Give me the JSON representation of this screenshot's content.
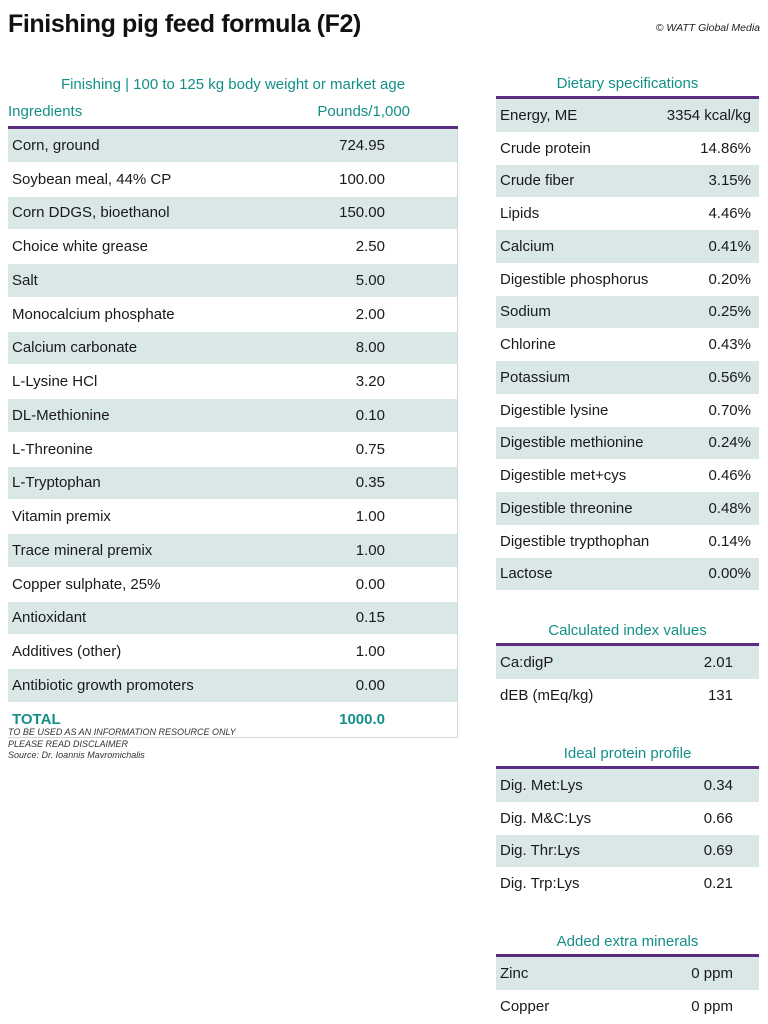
{
  "title": "Finishing pig feed formula (F2)",
  "credit": "© WATT Global Media",
  "left": {
    "caption": "Finishing | 100 to 125 kg body weight or market age",
    "col_ingredients": "Ingredients",
    "col_amount": "Pounds/1,000",
    "rows": [
      {
        "name": "Corn, ground",
        "value": "724.95"
      },
      {
        "name": "Soybean meal, 44% CP",
        "value": "100.00"
      },
      {
        "name": "Corn DDGS, bioethanol",
        "value": "150.00"
      },
      {
        "name": "Choice white grease",
        "value": "2.50"
      },
      {
        "name": "Salt",
        "value": "5.00"
      },
      {
        "name": "Monocalcium phosphate",
        "value": "2.00"
      },
      {
        "name": "Calcium carbonate",
        "value": "8.00"
      },
      {
        "name": "L-Lysine HCl",
        "value": "3.20"
      },
      {
        "name": "DL-Methionine",
        "value": "0.10"
      },
      {
        "name": "L-Threonine",
        "value": "0.75"
      },
      {
        "name": "L-Tryptophan",
        "value": "0.35"
      },
      {
        "name": "Vitamin premix",
        "value": "1.00"
      },
      {
        "name": "Trace mineral premix",
        "value": "1.00"
      },
      {
        "name": "Copper sulphate, 25%",
        "value": "0.00"
      },
      {
        "name": "Antioxidant",
        "value": "0.15"
      },
      {
        "name": "Additives (other)",
        "value": "1.00"
      },
      {
        "name": "Antibiotic growth promoters",
        "value": "0.00"
      }
    ],
    "total_label": "TOTAL",
    "total_value": "1000.0"
  },
  "disclaimer": {
    "line1": "TO BE USED AS AN INFORMATION RESOURCE ONLY",
    "line2": "PLEASE READ DISCLAIMER",
    "line3": "Source: Dr. Ioannis Mavromichalis"
  },
  "dietary": {
    "title": "Dietary specifications",
    "rows": [
      {
        "name": "Energy, ME",
        "value": "3354 kcal/kg"
      },
      {
        "name": "Crude protein",
        "value": "14.86%"
      },
      {
        "name": "Crude fiber",
        "value": "3.15%"
      },
      {
        "name": "Lipids",
        "value": "4.46%"
      },
      {
        "name": "Calcium",
        "value": "0.41%"
      },
      {
        "name": "Digestible phosphorus",
        "value": "0.20%"
      },
      {
        "name": "Sodium",
        "value": "0.25%"
      },
      {
        "name": "Chlorine",
        "value": "0.43%"
      },
      {
        "name": "Potassium",
        "value": "0.56%"
      },
      {
        "name": "Digestible lysine",
        "value": "0.70%"
      },
      {
        "name": "Digestible methionine",
        "value": "0.24%"
      },
      {
        "name": "Digestible met+cys",
        "value": "0.46%"
      },
      {
        "name": "Digestible threonine",
        "value": "0.48%"
      },
      {
        "name": "Digestible trypthophan",
        "value": "0.14%"
      },
      {
        "name": "Lactose",
        "value": "0.00%"
      }
    ]
  },
  "index": {
    "title": "Calculated index values",
    "rows": [
      {
        "name": "Ca:digP",
        "value": "2.01"
      },
      {
        "name": "dEB (mEq/kg)",
        "value": "131"
      }
    ]
  },
  "protein": {
    "title": "Ideal protein profile",
    "rows": [
      {
        "name": "Dig. Met:Lys",
        "value": "0.34"
      },
      {
        "name": "Dig. M&C:Lys",
        "value": "0.66"
      },
      {
        "name": "Dig. Thr:Lys",
        "value": "0.69"
      },
      {
        "name": "Dig. Trp:Lys",
        "value": "0.21"
      }
    ]
  },
  "minerals": {
    "title": "Added extra minerals",
    "rows": [
      {
        "name": "Zinc",
        "value": "0 ppm"
      },
      {
        "name": "Copper",
        "value": "0 ppm"
      }
    ]
  }
}
